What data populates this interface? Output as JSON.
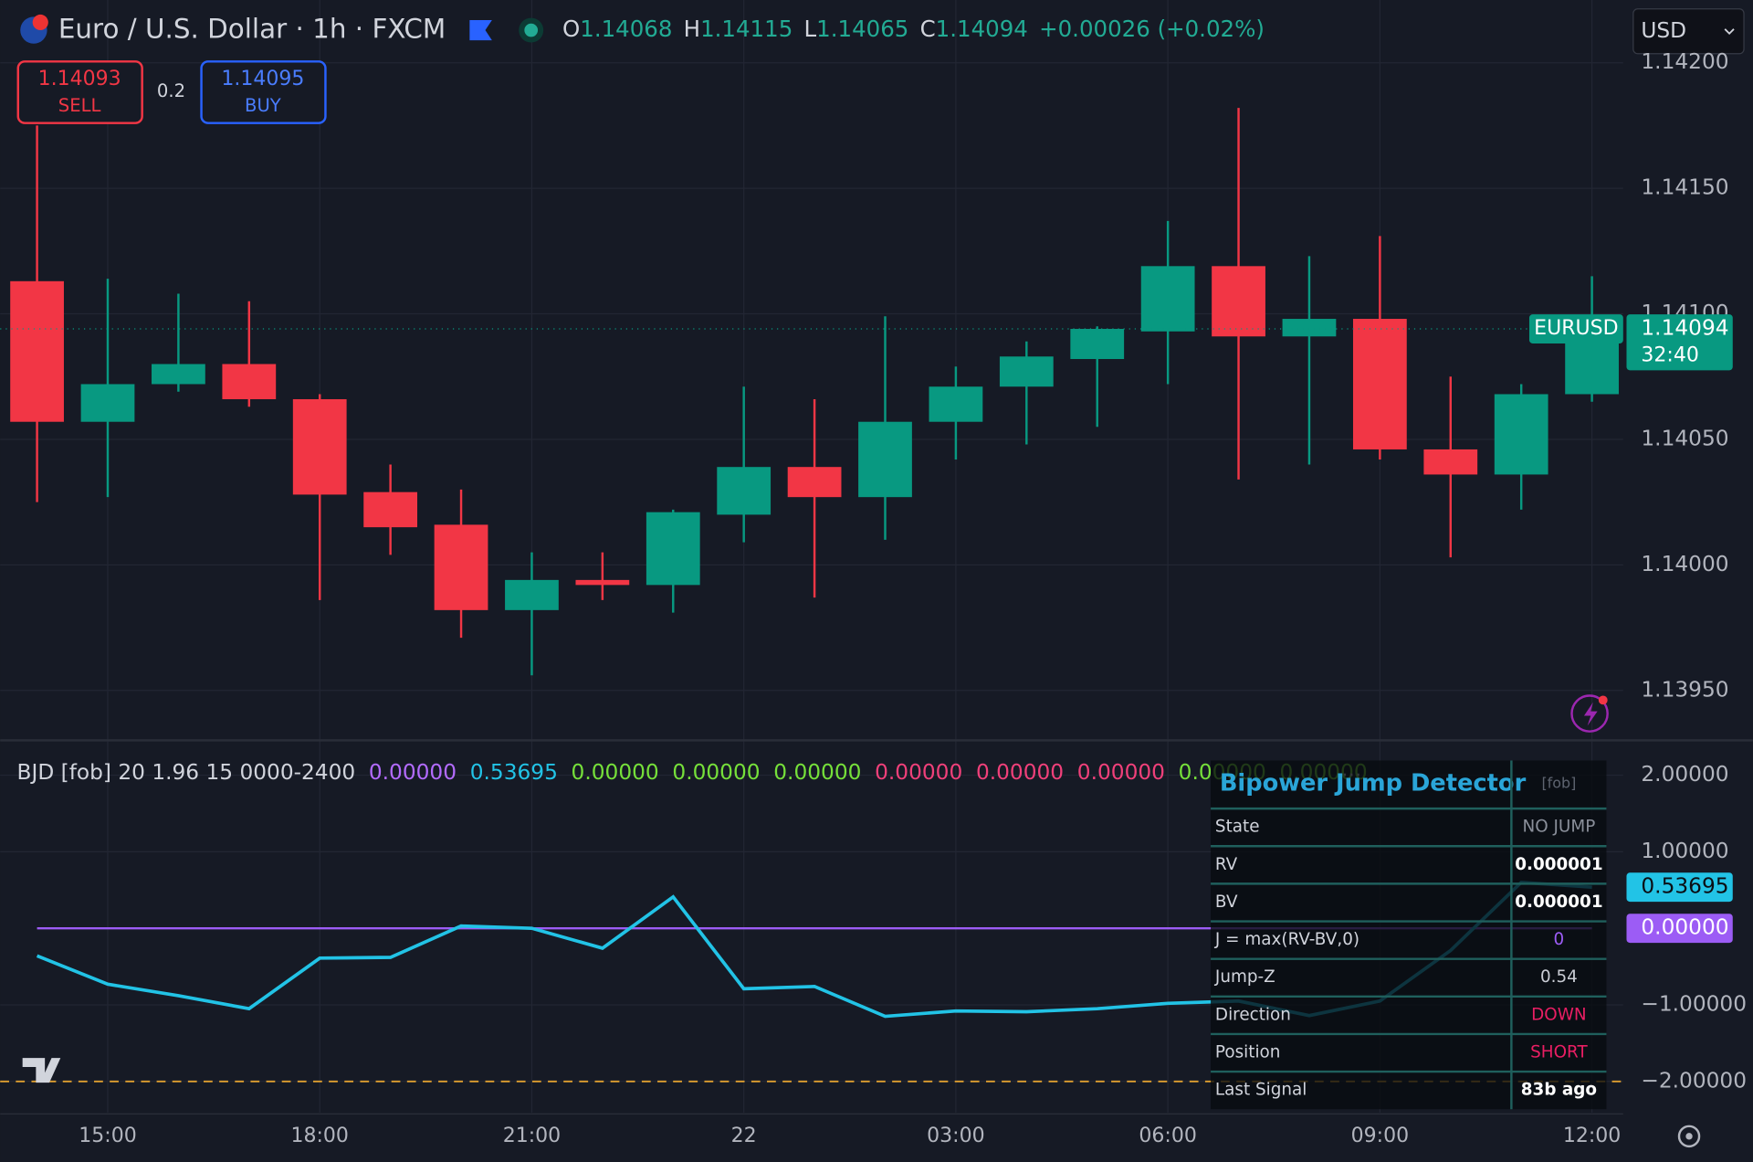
{
  "header": {
    "symbol": "Euro / U.S. Dollar · 1h · FXCM",
    "ohlc": [
      {
        "label": "O",
        "value": "1.14068"
      },
      {
        "label": "H",
        "value": "1.14115"
      },
      {
        "label": "L",
        "value": "1.14065"
      },
      {
        "label": "C",
        "value": "1.14094"
      }
    ],
    "change": "+0.00026 (+0.02%)",
    "currency": "USD"
  },
  "order_buttons": {
    "sell_price": "1.14093",
    "sell": "SELL",
    "spread": "0.2",
    "buy_price": "1.14095",
    "buy": "BUY"
  },
  "chart_data": [
    {
      "type": "candlestick",
      "up_color": "#089981",
      "down_color": "#f23645",
      "open": [
        1.14113,
        1.14057,
        1.14072,
        1.1408,
        1.14066,
        1.14029,
        1.14016,
        1.13982,
        1.13994,
        1.13992,
        1.1402,
        1.14039,
        1.14027,
        1.14057,
        1.14071,
        1.14082,
        1.14093,
        1.14119,
        1.14091,
        1.14098,
        1.14046,
        1.14036,
        1.14068
      ],
      "high": [
        1.14175,
        1.14114,
        1.14108,
        1.14105,
        1.14068,
        1.1404,
        1.1403,
        1.14005,
        1.14005,
        1.14022,
        1.14071,
        1.14066,
        1.14099,
        1.14079,
        1.14089,
        1.14095,
        1.14137,
        1.14182,
        1.14123,
        1.14131,
        1.14075,
        1.14072,
        1.14115
      ],
      "low": [
        1.14025,
        1.14027,
        1.14069,
        1.14063,
        1.13986,
        1.14004,
        1.13971,
        1.13956,
        1.13986,
        1.13981,
        1.14009,
        1.13987,
        1.1401,
        1.14042,
        1.14048,
        1.14055,
        1.14072,
        1.14034,
        1.1404,
        1.14042,
        1.14003,
        1.14022,
        1.14065
      ],
      "close": [
        1.14057,
        1.14072,
        1.1408,
        1.14066,
        1.14028,
        1.14015,
        1.13982,
        1.13994,
        1.13992,
        1.14021,
        1.14039,
        1.14027,
        1.14057,
        1.14071,
        1.14083,
        1.14094,
        1.14119,
        1.14091,
        1.14098,
        1.14046,
        1.14036,
        1.14068,
        1.14094
      ],
      "ylim": [
        1.13931,
        1.14225
      ],
      "yticks": [
        {
          "value": 1.142,
          "label": "1.14200"
        },
        {
          "value": 1.1415,
          "label": "1.14150"
        },
        {
          "value": 1.141,
          "label": "1.14100"
        },
        {
          "value": 1.1405,
          "label": "1.14050"
        },
        {
          "value": 1.14,
          "label": "1.14000"
        },
        {
          "value": 1.1395,
          "label": "1.13950"
        }
      ],
      "grid": true,
      "symbol_label": "EURUSD",
      "countdown": "32:40"
    },
    {
      "type": "line",
      "title": "BJD [fob] 20 1.96 15 0000-2400",
      "legend_values": [
        {
          "text": "0.00000",
          "color": "#b36bff"
        },
        {
          "text": "0.53695",
          "color": "#22c3e6"
        },
        {
          "text": "0.00000",
          "color": "#76e03a"
        },
        {
          "text": "0.00000",
          "color": "#76e03a"
        },
        {
          "text": "0.00000",
          "color": "#76e03a"
        },
        {
          "text": "0.00000",
          "color": "#f0407a"
        },
        {
          "text": "0.00000",
          "color": "#f0407a"
        },
        {
          "text": "0.00000",
          "color": "#f0407a"
        },
        {
          "text": "0.00000",
          "color": "#76e03a"
        },
        {
          "text": "0.00000",
          "color": "#76e03a"
        }
      ],
      "categories": [
        null,
        "15:00",
        null,
        null,
        "18:00",
        null,
        null,
        "21:00",
        null,
        null,
        "22",
        null,
        null,
        "03:00",
        null,
        null,
        "06:00",
        null,
        null,
        "09:00",
        null,
        null,
        "12:00"
      ],
      "series": [
        {
          "color": "#22c3e6",
          "values": [
            -0.36,
            -0.73,
            -0.88,
            -1.05,
            -0.39,
            -0.38,
            0.03,
            0,
            -0.26,
            0.41,
            -0.79,
            -0.76,
            -1.15,
            -1.08,
            -1.09,
            -1.05,
            -0.98,
            -0.95,
            -1.14,
            -0.95,
            -0.29,
            0.6,
            0.53695
          ]
        },
        {
          "color": "#9c5cf5",
          "values": [
            0,
            0,
            0,
            0,
            0,
            0,
            0,
            0,
            0,
            0,
            0,
            0,
            0,
            0,
            0,
            0,
            0,
            0,
            0,
            0,
            0,
            0,
            0
          ]
        }
      ],
      "dashed_level": -2,
      "dashed_color": "#e0a030",
      "ylim": [
        -2.41,
        2.44
      ],
      "yticks": [
        {
          "value": 2,
          "label": "2.00000"
        },
        {
          "value": 1,
          "label": "1.00000"
        },
        {
          "value": -1,
          "label": "−1.00000"
        },
        {
          "value": -2,
          "label": "−2.00000"
        }
      ],
      "grid": true
    }
  ],
  "table": {
    "title": "Bipower Jump Detector",
    "tag": "[fob]",
    "rows": [
      {
        "label": "State",
        "value": "NO JUMP",
        "color": "#8a8f9a"
      },
      {
        "label": "RV",
        "value": "0.000001",
        "color": "#ffffff"
      },
      {
        "label": "BV",
        "value": "0.000001",
        "color": "#ffffff"
      },
      {
        "label": "J = max(RV-BV,0)",
        "value": "0",
        "color": "#9c5cf5"
      },
      {
        "label": "Jump-Z",
        "value": "0.54",
        "color": "#c9ccd4"
      },
      {
        "label": "Direction",
        "value": "DOWN",
        "color": "#e91e63"
      },
      {
        "label": "Position",
        "value": "SHORT",
        "color": "#e91e63"
      },
      {
        "label": "Last Signal",
        "value": "83b ago",
        "color": "#ffffff"
      }
    ]
  }
}
